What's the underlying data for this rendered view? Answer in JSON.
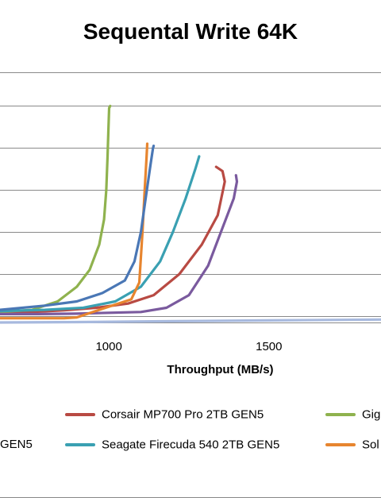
{
  "chart_data": {
    "type": "line",
    "title": "Sequental Write 64K",
    "xlabel": "Throughput  (MB/s)",
    "ylabel": "",
    "xlim": [
      660,
      1850
    ],
    "ylim": [
      -15,
      580
    ],
    "x_ticks": [
      1000,
      1500
    ],
    "x_tick_labels": [
      "1000",
      "1500"
    ],
    "y_gridlines": [
      0,
      100,
      200,
      300,
      400,
      500
    ],
    "grid": "horizontal",
    "legend_placement": "bottom",
    "series": [
      {
        "name": "Corsair MP700 Pro 2TB GEN5",
        "color": "#B84A43",
        "x": [
          660,
          760,
          860,
          960,
          1060,
          1140,
          1220,
          1290,
          1340,
          1362,
          1355,
          1335
        ],
        "y": [
          8,
          10,
          14,
          20,
          30,
          50,
          100,
          170,
          240,
          320,
          345,
          355
        ]
      },
      {
        "name": "Gig",
        "color": "#8FB24E",
        "x": [
          660,
          760,
          840,
          900,
          940,
          970,
          985,
          992,
          996,
          999,
          1001,
          1004
        ],
        "y": [
          10,
          15,
          35,
          70,
          110,
          170,
          230,
          300,
          380,
          450,
          495,
          500
        ]
      },
      {
        "name": "GEN5",
        "color": "#7A5A9E",
        "x": [
          660,
          780,
          900,
          1000,
          1100,
          1180,
          1250,
          1310,
          1350,
          1390,
          1400,
          1397
        ],
        "y": [
          5,
          5,
          6,
          8,
          10,
          20,
          50,
          120,
          200,
          280,
          320,
          335
        ]
      },
      {
        "name": "Seagate Firecuda 540 2TB GEN5",
        "color": "#3AA0B2",
        "x": [
          660,
          800,
          920,
          1020,
          1100,
          1160,
          1200,
          1240,
          1270,
          1282
        ],
        "y": [
          12,
          15,
          20,
          35,
          70,
          130,
          200,
          280,
          350,
          380
        ]
      },
      {
        "name": "Sol",
        "color": "#E7852F",
        "x": [
          660,
          760,
          860,
          900,
          970,
          1070,
          1095,
          1105,
          1112,
          1118,
          1120
        ],
        "y": [
          -5,
          -5,
          -5,
          -3,
          15,
          40,
          80,
          200,
          300,
          380,
          410
        ]
      },
      {
        "name": "",
        "color": "#4A77B5",
        "x": [
          660,
          800,
          900,
          980,
          1050,
          1080,
          1100,
          1115,
          1130,
          1138,
          1140
        ],
        "y": [
          15,
          25,
          35,
          55,
          85,
          130,
          200,
          280,
          360,
          400,
          405
        ]
      },
      {
        "name": "",
        "color": "#A7B9DE",
        "x": [
          660,
          900,
          1200,
          1500,
          1850
        ],
        "y": [
          -15,
          -14,
          -12,
          -10,
          -8
        ]
      }
    ]
  }
}
